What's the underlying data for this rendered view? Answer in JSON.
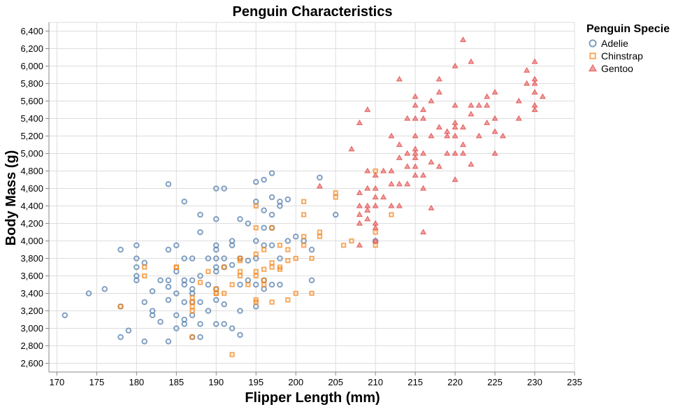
{
  "chart_data": {
    "type": "scatter",
    "title": "Penguin Characteristics",
    "xlabel": "Flipper Length (mm)",
    "ylabel": "Body Mass (g)",
    "xlim": [
      169,
      235
    ],
    "ylim": [
      2500,
      6500
    ],
    "x_ticks": [
      170,
      175,
      180,
      185,
      190,
      195,
      200,
      205,
      210,
      215,
      220,
      225,
      230,
      235
    ],
    "y_ticks": [
      2600,
      2800,
      3000,
      3200,
      3400,
      3600,
      3800,
      4000,
      4200,
      4400,
      4600,
      4800,
      5000,
      5200,
      5400,
      5600,
      5800,
      6000,
      6200,
      6400
    ],
    "y_tick_labels": [
      "2,600",
      "2,800",
      "3,000",
      "3,200",
      "3,400",
      "3,600",
      "3,800",
      "4,000",
      "4,200",
      "4,400",
      "4,600",
      "4,800",
      "5,000",
      "5,200",
      "5,400",
      "5,600",
      "5,800",
      "6,000",
      "6,200",
      "6,400"
    ],
    "grid": true,
    "legend": {
      "title": "Penguin Specie",
      "placement": "top-right"
    },
    "series": [
      {
        "name": "Adelie",
        "shape": "circle",
        "color": "#4c78a8",
        "points": [
          [
            171,
            3150
          ],
          [
            174,
            3400
          ],
          [
            176,
            3450
          ],
          [
            178,
            3900
          ],
          [
            178,
            3250
          ],
          [
            178,
            2900
          ],
          [
            179,
            2975
          ],
          [
            180,
            3950
          ],
          [
            180,
            3800
          ],
          [
            180,
            3700
          ],
          [
            180,
            3600
          ],
          [
            180,
            3550
          ],
          [
            181,
            3750
          ],
          [
            181,
            3300
          ],
          [
            181,
            2850
          ],
          [
            182,
            3200
          ],
          [
            182,
            3150
          ],
          [
            182,
            3425
          ],
          [
            183,
            3550
          ],
          [
            183,
            3075
          ],
          [
            184,
            4650
          ],
          [
            184,
            3900
          ],
          [
            184,
            3550
          ],
          [
            184,
            3475
          ],
          [
            184,
            3325
          ],
          [
            184,
            2850
          ],
          [
            185,
            3950
          ],
          [
            185,
            3650
          ],
          [
            185,
            3400
          ],
          [
            185,
            3150
          ],
          [
            185,
            3000
          ],
          [
            186,
            4450
          ],
          [
            186,
            3800
          ],
          [
            186,
            3550
          ],
          [
            186,
            3500
          ],
          [
            186,
            3300
          ],
          [
            186,
            3100
          ],
          [
            186,
            3050
          ],
          [
            187,
            3800
          ],
          [
            187,
            3550
          ],
          [
            187,
            3450
          ],
          [
            187,
            3400
          ],
          [
            187,
            3300
          ],
          [
            187,
            3150
          ],
          [
            187,
            2900
          ],
          [
            188,
            4300
          ],
          [
            188,
            4100
          ],
          [
            188,
            3600
          ],
          [
            188,
            3300
          ],
          [
            188,
            3050
          ],
          [
            188,
            2900
          ],
          [
            189,
            3800
          ],
          [
            189,
            3500
          ],
          [
            189,
            3200
          ],
          [
            190,
            4600
          ],
          [
            190,
            4250
          ],
          [
            190,
            3950
          ],
          [
            190,
            3900
          ],
          [
            190,
            3800
          ],
          [
            190,
            3700
          ],
          [
            190,
            3650
          ],
          [
            190,
            3450
          ],
          [
            190,
            3325
          ],
          [
            190,
            3050
          ],
          [
            191,
            4600
          ],
          [
            191,
            3800
          ],
          [
            191,
            3700
          ],
          [
            191,
            3275
          ],
          [
            191,
            3050
          ],
          [
            192,
            4000
          ],
          [
            192,
            3725
          ],
          [
            192,
            3950
          ],
          [
            192,
            3000
          ],
          [
            193,
            4250
          ],
          [
            193,
            3800
          ],
          [
            193,
            3500
          ],
          [
            193,
            3200
          ],
          [
            193,
            2925
          ],
          [
            194,
            4200
          ],
          [
            194,
            3775
          ],
          [
            194,
            3550
          ],
          [
            195,
            4675
          ],
          [
            195,
            4450
          ],
          [
            195,
            4000
          ],
          [
            195,
            3800
          ],
          [
            195,
            3500
          ],
          [
            195,
            3250
          ],
          [
            196,
            4700
          ],
          [
            196,
            4350
          ],
          [
            196,
            4150
          ],
          [
            196,
            3950
          ],
          [
            196,
            3550
          ],
          [
            196,
            3450
          ],
          [
            197,
            4775
          ],
          [
            197,
            4500
          ],
          [
            197,
            4300
          ],
          [
            197,
            4150
          ],
          [
            197,
            3950
          ],
          [
            197,
            3500
          ],
          [
            198,
            4400
          ],
          [
            198,
            4450
          ],
          [
            198,
            3800
          ],
          [
            198,
            3500
          ],
          [
            199,
            4475
          ],
          [
            199,
            4000
          ],
          [
            200,
            4050
          ],
          [
            201,
            4000
          ],
          [
            202,
            3900
          ],
          [
            202,
            3550
          ],
          [
            203,
            4725
          ],
          [
            205,
            4300
          ],
          [
            210,
            4000
          ]
        ]
      },
      {
        "name": "Chinstrap",
        "shape": "square",
        "color": "#f58518",
        "points": [
          [
            178,
            3250
          ],
          [
            181,
            3700
          ],
          [
            181,
            3600
          ],
          [
            185,
            3700
          ],
          [
            185,
            3700
          ],
          [
            187,
            3350
          ],
          [
            187,
            3300
          ],
          [
            187,
            3250
          ],
          [
            187,
            3200
          ],
          [
            187,
            2900
          ],
          [
            188,
            3525
          ],
          [
            189,
            3650
          ],
          [
            190,
            3450
          ],
          [
            190,
            3400
          ],
          [
            190,
            3400
          ],
          [
            191,
            3700
          ],
          [
            191,
            3400
          ],
          [
            192,
            3500
          ],
          [
            192,
            2700
          ],
          [
            193,
            3800
          ],
          [
            193,
            3775
          ],
          [
            193,
            3650
          ],
          [
            193,
            3600
          ],
          [
            194,
            3500
          ],
          [
            195,
            4400
          ],
          [
            195,
            4150
          ],
          [
            195,
            3850
          ],
          [
            195,
            3650
          ],
          [
            195,
            3600
          ],
          [
            195,
            3325
          ],
          [
            195,
            3300
          ],
          [
            196,
            3900
          ],
          [
            196,
            3675
          ],
          [
            196,
            3550
          ],
          [
            196,
            3500
          ],
          [
            197,
            4150
          ],
          [
            197,
            3750
          ],
          [
            197,
            3700
          ],
          [
            197,
            3300
          ],
          [
            198,
            3950
          ],
          [
            198,
            3700
          ],
          [
            198,
            3675
          ],
          [
            199,
            3900
          ],
          [
            199,
            3775
          ],
          [
            199,
            3325
          ],
          [
            200,
            3800
          ],
          [
            200,
            3400
          ],
          [
            201,
            4450
          ],
          [
            201,
            4300
          ],
          [
            201,
            4050
          ],
          [
            201,
            3950
          ],
          [
            202,
            3800
          ],
          [
            202,
            3400
          ],
          [
            203,
            4100
          ],
          [
            203,
            4050
          ],
          [
            205,
            4550
          ],
          [
            205,
            4500
          ],
          [
            206,
            3950
          ],
          [
            207,
            4000
          ],
          [
            210,
            4800
          ],
          [
            210,
            4100
          ],
          [
            210,
            3950
          ],
          [
            212,
            4300
          ]
        ]
      },
      {
        "name": "Gentoo",
        "shape": "triangle",
        "color": "#e45756",
        "points": [
          [
            203,
            4625
          ],
          [
            207,
            5050
          ],
          [
            208,
            5350
          ],
          [
            208,
            4550
          ],
          [
            208,
            4400
          ],
          [
            208,
            4300
          ],
          [
            208,
            4200
          ],
          [
            208,
            3950
          ],
          [
            209,
            5500
          ],
          [
            209,
            4800
          ],
          [
            209,
            4600
          ],
          [
            209,
            4400
          ],
          [
            209,
            4350
          ],
          [
            209,
            4250
          ],
          [
            210,
            4750
          ],
          [
            210,
            4600
          ],
          [
            210,
            4500
          ],
          [
            210,
            4400
          ],
          [
            210,
            4200
          ],
          [
            210,
            4150
          ],
          [
            210,
            4000
          ],
          [
            211,
            4800
          ],
          [
            211,
            4500
          ],
          [
            212,
            5200
          ],
          [
            212,
            4800
          ],
          [
            212,
            4650
          ],
          [
            212,
            4400
          ],
          [
            213,
            5850
          ],
          [
            213,
            5100
          ],
          [
            213,
            4950
          ],
          [
            213,
            4650
          ],
          [
            213,
            4400
          ],
          [
            214,
            5400
          ],
          [
            214,
            5000
          ],
          [
            214,
            4850
          ],
          [
            214,
            4650
          ],
          [
            215,
            5650
          ],
          [
            215,
            5550
          ],
          [
            215,
            5400
          ],
          [
            215,
            5200
          ],
          [
            215,
            5050
          ],
          [
            215,
            5000
          ],
          [
            215,
            4950
          ],
          [
            215,
            4850
          ],
          [
            215,
            4750
          ],
          [
            216,
            5500
          ],
          [
            216,
            5400
          ],
          [
            216,
            5000
          ],
          [
            216,
            4750
          ],
          [
            216,
            4600
          ],
          [
            216,
            4100
          ],
          [
            217,
            5600
          ],
          [
            217,
            5200
          ],
          [
            217,
            4900
          ],
          [
            217,
            4375
          ],
          [
            218,
            5850
          ],
          [
            218,
            5700
          ],
          [
            218,
            5300
          ],
          [
            218,
            4850
          ],
          [
            219,
            5250
          ],
          [
            219,
            5200
          ],
          [
            219,
            5000
          ],
          [
            220,
            6000
          ],
          [
            220,
            5550
          ],
          [
            220,
            5350
          ],
          [
            220,
            5300
          ],
          [
            220,
            5200
          ],
          [
            220,
            5000
          ],
          [
            220,
            4700
          ],
          [
            221,
            6300
          ],
          [
            221,
            5300
          ],
          [
            221,
            5100
          ],
          [
            221,
            5000
          ],
          [
            222,
            6050
          ],
          [
            222,
            5550
          ],
          [
            222,
            5450
          ],
          [
            222,
            4875
          ],
          [
            223,
            5550
          ],
          [
            223,
            5200
          ],
          [
            224,
            5650
          ],
          [
            224,
            5550
          ],
          [
            224,
            5350
          ],
          [
            225,
            5700
          ],
          [
            225,
            5400
          ],
          [
            225,
            5250
          ],
          [
            225,
            5000
          ],
          [
            226,
            5200
          ],
          [
            228,
            5600
          ],
          [
            228,
            5400
          ],
          [
            229,
            5800
          ],
          [
            229,
            5950
          ],
          [
            230,
            6050
          ],
          [
            230,
            5850
          ],
          [
            230,
            5800
          ],
          [
            230,
            5700
          ],
          [
            230,
            5550
          ],
          [
            230,
            5500
          ],
          [
            231,
            5650
          ]
        ]
      }
    ]
  }
}
